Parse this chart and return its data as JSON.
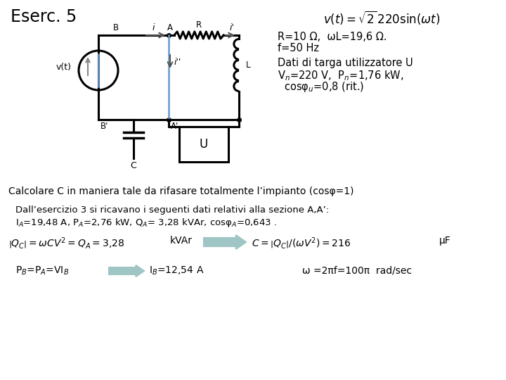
{
  "title": "Eserc. 5",
  "formula_top": "$v(t) = \\sqrt{2}\\,220\\sin(\\omega t)$",
  "params_line1": "R=10 Ω,  ωL=19,6 Ω.",
  "params_line2": "f=50 Hz",
  "dati_title": "Dati di targa utilizzatore U",
  "dati_line1": "V$_n$=220 V,  P$_n$=1,76 kW,",
  "dati_line2": "  cosφ$_u$=0,8 (rit.)",
  "calc_line": "Calcolare C in maniera tale da rifasare totalmente l’impianto (cosφ=1)",
  "dall_line1": "Dall’esercizio 3 si ricavano i seguenti dati relativi alla sezione A,A’:",
  "dall_line2": "I$_A$=19,48 A, P$_A$=2,76 kW, Q$_A$= 3,28 kVAr, cosφ$_A$=0,643 .",
  "formula2_img": "$\\left|Q_C\\right| = \\omega CV^2 = Q_A = 3{,}28$",
  "kvar_text": "kVAr",
  "formula3_img": "$C = \\left|Q_C\\right|/(\\omega V^2) = 216$",
  "uf_text": "μF",
  "pb_text": "P$_B$=P$_A$=VI$_B$",
  "ib_text": "I$_B$=12,54 A",
  "omega_text": "ω =2πf=100π  rad/sec",
  "bg_color": "#ffffff",
  "arrow_color": "#9fc5c5",
  "blue_color": "#6699cc"
}
